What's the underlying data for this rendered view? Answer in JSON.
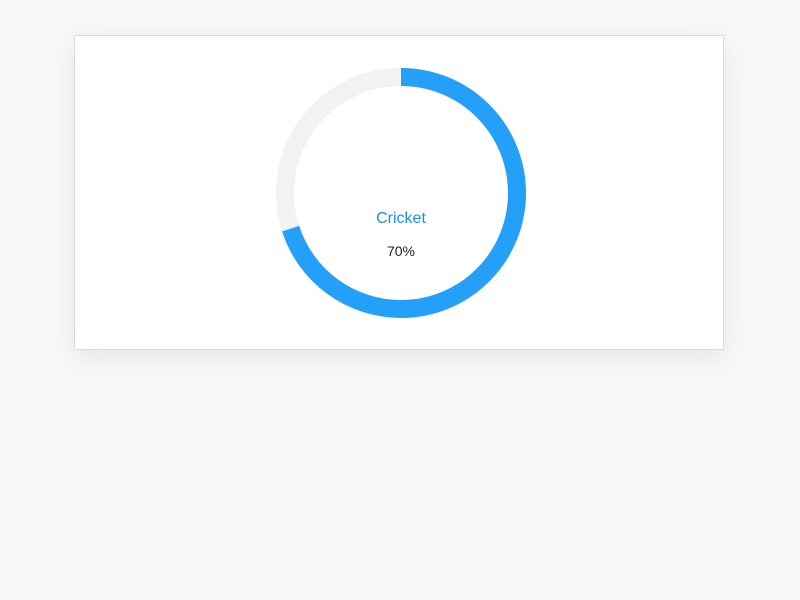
{
  "progress": {
    "label": "Cricket",
    "percent_text": "70%",
    "value": 0.7
  },
  "colors": {
    "accent": "#249ffa",
    "label": "#1b8fe3",
    "track": "#f2f2f2",
    "text": "#222222"
  },
  "icons": {
    "progress_ring": "progress-ring"
  }
}
